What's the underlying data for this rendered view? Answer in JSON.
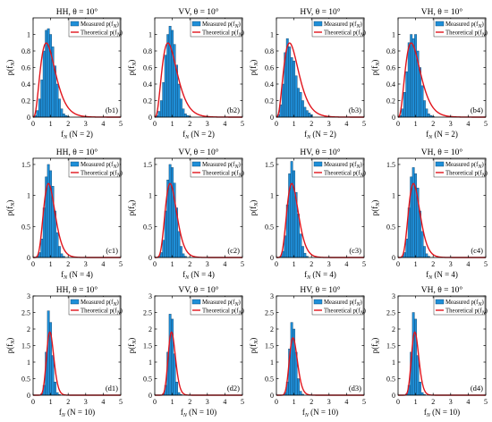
{
  "figure": {
    "colors": {
      "bar": "#1f8fd8",
      "bar_edge": "#0d3f66",
      "curve": "#e1141c",
      "axis": "#000000"
    }
  },
  "chart_data": [
    {
      "type": "bar",
      "panel": "b1",
      "title": "HH, θ = 10°",
      "xlabel": "f_N (N = 2)",
      "ylabel": "p(f_N)",
      "legend": [
        "Measured p(f_N)",
        "Theoretical p(f_N)"
      ],
      "xlim": [
        0,
        5
      ],
      "ylim": [
        0,
        1.2
      ],
      "x_ticks": [
        0,
        1,
        2,
        3,
        4,
        5
      ],
      "y_ticks": [
        0,
        0.2,
        0.4,
        0.6,
        0.8,
        1
      ],
      "bin_width": 0.125,
      "bins": [
        0.125,
        0.25,
        0.375,
        0.5,
        0.625,
        0.75,
        0.875,
        1.0,
        1.125,
        1.25,
        1.375,
        1.5,
        1.625,
        1.75,
        1.875,
        2.0
      ],
      "values": [
        0.02,
        0.08,
        0.22,
        0.45,
        0.8,
        1.05,
        1.07,
        1.0,
        0.85,
        0.62,
        0.4,
        0.22,
        0.1,
        0.04,
        0.02,
        0.01
      ],
      "curve": {
        "dist": "gamma",
        "shape": 4
      }
    },
    {
      "type": "bar",
      "panel": "b2",
      "title": "VV, θ = 10°",
      "xlabel": "f_N (N = 2)",
      "ylabel": "p(f_N)",
      "legend": [
        "Measured p(f_N)",
        "Theoretical p(f_N)"
      ],
      "xlim": [
        0,
        5
      ],
      "ylim": [
        0,
        1.2
      ],
      "x_ticks": [
        0,
        1,
        2,
        3,
        4,
        5
      ],
      "y_ticks": [
        0,
        0.2,
        0.4,
        0.6,
        0.8,
        1
      ],
      "bin_width": 0.125,
      "bins": [
        0.125,
        0.25,
        0.375,
        0.5,
        0.625,
        0.75,
        0.875,
        1.0,
        1.125,
        1.25,
        1.375,
        1.5,
        1.625,
        1.75,
        1.875,
        2.0
      ],
      "values": [
        0.02,
        0.07,
        0.2,
        0.42,
        0.75,
        1.0,
        1.1,
        1.05,
        0.88,
        0.63,
        0.4,
        0.22,
        0.1,
        0.04,
        0.02,
        0.01
      ],
      "curve": {
        "dist": "gamma",
        "shape": 4
      }
    },
    {
      "type": "bar",
      "panel": "b3",
      "title": "HV, θ = 10°",
      "xlabel": "f_N (N = 2)",
      "ylabel": "p(f_N)",
      "legend": [
        "Measured p(f_N)",
        "Theoretical p(f_N)"
      ],
      "xlim": [
        0,
        5
      ],
      "ylim": [
        0,
        1.2
      ],
      "x_ticks": [
        0,
        1,
        2,
        3,
        4,
        5
      ],
      "y_ticks": [
        0,
        0.2,
        0.4,
        0.6,
        0.8,
        1
      ],
      "bin_width": 0.125,
      "bins": [
        0.125,
        0.25,
        0.375,
        0.5,
        0.625,
        0.75,
        0.875,
        1.0,
        1.125,
        1.25,
        1.375,
        1.5,
        1.625,
        1.75,
        1.875,
        2.0
      ],
      "values": [
        0.03,
        0.15,
        0.4,
        0.78,
        0.95,
        0.85,
        0.72,
        0.68,
        0.5,
        0.35,
        0.3,
        0.2,
        0.12,
        0.08,
        0.05,
        0.03
      ],
      "curve": {
        "dist": "gamma",
        "shape": 4
      }
    },
    {
      "type": "bar",
      "panel": "b4",
      "title": "VH, θ = 10°",
      "xlabel": "f_N (N = 2)",
      "ylabel": "p(f_N)",
      "legend": [
        "Measured p(f_N)",
        "Theoretical p(f_N)"
      ],
      "xlim": [
        0,
        5
      ],
      "ylim": [
        0,
        1.2
      ],
      "x_ticks": [
        0,
        1,
        2,
        3,
        4,
        5
      ],
      "y_ticks": [
        0,
        0.2,
        0.4,
        0.6,
        0.8,
        1
      ],
      "bin_width": 0.125,
      "bins": [
        0.125,
        0.25,
        0.375,
        0.5,
        0.625,
        0.75,
        0.875,
        1.0,
        1.125,
        1.25,
        1.375,
        1.5,
        1.625,
        1.75,
        1.875,
        2.0
      ],
      "values": [
        0.02,
        0.1,
        0.3,
        0.55,
        0.9,
        1.0,
        0.95,
        1.0,
        0.8,
        0.6,
        0.38,
        0.2,
        0.1,
        0.04,
        0.02,
        0.01
      ],
      "curve": {
        "dist": "gamma",
        "shape": 4
      }
    },
    {
      "type": "bar",
      "panel": "c1",
      "title": "HH, θ = 10°",
      "xlabel": "f_N (N = 4)",
      "ylabel": "p(f_N)",
      "legend": [
        "Measured p(f_N)",
        "Theoretical p(f_N)"
      ],
      "xlim": [
        0,
        5
      ],
      "ylim": [
        0,
        1.6
      ],
      "x_ticks": [
        0,
        1,
        2,
        3,
        4,
        5
      ],
      "y_ticks": [
        0,
        0.5,
        1,
        1.5
      ],
      "bin_width": 0.125,
      "bins": [
        0.25,
        0.375,
        0.5,
        0.625,
        0.75,
        0.875,
        1.0,
        1.125,
        1.25,
        1.375,
        1.5,
        1.625,
        1.75
      ],
      "values": [
        0.02,
        0.08,
        0.3,
        0.8,
        1.3,
        1.5,
        1.4,
        1.15,
        0.75,
        0.4,
        0.18,
        0.06,
        0.02
      ],
      "curve": {
        "dist": "gamma",
        "shape": 8
      }
    },
    {
      "type": "bar",
      "panel": "c2",
      "title": "VV, θ = 10°",
      "xlabel": "f_N (N = 4)",
      "ylabel": "p(f_N)",
      "legend": [
        "Measured p(f_N)",
        "Theoretical p(f_N)"
      ],
      "xlim": [
        0,
        5
      ],
      "ylim": [
        0,
        1.6
      ],
      "x_ticks": [
        0,
        1,
        2,
        3,
        4,
        5
      ],
      "y_ticks": [
        0,
        0.5,
        1,
        1.5
      ],
      "bin_width": 0.125,
      "bins": [
        0.25,
        0.375,
        0.5,
        0.625,
        0.75,
        0.875,
        1.0,
        1.125,
        1.25,
        1.375,
        1.5,
        1.625,
        1.75
      ],
      "values": [
        0.02,
        0.08,
        0.28,
        0.75,
        1.25,
        1.5,
        1.45,
        1.2,
        0.8,
        0.42,
        0.18,
        0.06,
        0.02
      ],
      "curve": {
        "dist": "gamma",
        "shape": 8
      }
    },
    {
      "type": "bar",
      "panel": "c3",
      "title": "HV, θ = 10°",
      "xlabel": "f_N (N = 4)",
      "ylabel": "p(f_N)",
      "legend": [
        "Measured p(f_N)",
        "Theoretical p(f_N)"
      ],
      "xlim": [
        0,
        5
      ],
      "ylim": [
        0,
        1.6
      ],
      "x_ticks": [
        0,
        1,
        2,
        3,
        4,
        5
      ],
      "y_ticks": [
        0,
        0.5,
        1,
        1.5
      ],
      "bin_width": 0.125,
      "bins": [
        0.25,
        0.375,
        0.5,
        0.625,
        0.75,
        0.875,
        1.0,
        1.125,
        1.25,
        1.375,
        1.5,
        1.625,
        1.75
      ],
      "values": [
        0.02,
        0.1,
        0.35,
        0.85,
        1.35,
        1.55,
        1.4,
        1.05,
        0.7,
        0.38,
        0.18,
        0.07,
        0.02
      ],
      "curve": {
        "dist": "gamma",
        "shape": 8
      }
    },
    {
      "type": "bar",
      "panel": "c4",
      "title": "VH, θ = 10°",
      "xlabel": "f_N (N = 4)",
      "ylabel": "p(f_N)",
      "legend": [
        "Measured p(f_N)",
        "Theoretical p(f_N)"
      ],
      "xlim": [
        0,
        5
      ],
      "ylim": [
        0,
        1.6
      ],
      "x_ticks": [
        0,
        1,
        2,
        3,
        4,
        5
      ],
      "y_ticks": [
        0,
        0.5,
        1,
        1.5
      ],
      "bin_width": 0.125,
      "bins": [
        0.25,
        0.375,
        0.5,
        0.625,
        0.75,
        0.875,
        1.0,
        1.125,
        1.25,
        1.375,
        1.5,
        1.625,
        1.75
      ],
      "values": [
        0.02,
        0.08,
        0.3,
        0.8,
        1.3,
        1.45,
        1.35,
        1.12,
        0.75,
        0.42,
        0.18,
        0.06,
        0.02
      ],
      "curve": {
        "dist": "gamma",
        "shape": 8
      }
    },
    {
      "type": "bar",
      "panel": "d1",
      "title": "HH, θ = 10°",
      "xlabel": "f_N (N = 10)",
      "ylabel": "p(f_N)",
      "legend": [
        "Measured p(f_N)",
        "Theoretical p(f_N)"
      ],
      "xlim": [
        0,
        5
      ],
      "ylim": [
        0,
        3
      ],
      "x_ticks": [
        0,
        1,
        2,
        3,
        4,
        5
      ],
      "y_ticks": [
        0,
        0.5,
        1,
        1.5,
        2,
        2.5,
        3
      ],
      "bin_width": 0.125,
      "bins": [
        0.5,
        0.625,
        0.75,
        0.875,
        1.0,
        1.125,
        1.25,
        1.375,
        1.5
      ],
      "values": [
        0.05,
        0.3,
        1.3,
        2.55,
        2.2,
        1.2,
        0.4,
        0.08,
        0.02
      ],
      "curve": {
        "dist": "gamma",
        "shape": 22
      }
    },
    {
      "type": "bar",
      "panel": "d2",
      "title": "VV, θ = 10°",
      "xlabel": "f_N (N = 10)",
      "ylabel": "p(f_N)",
      "legend": [
        "Measured p(f_N)",
        "Theoretical p(f_N)"
      ],
      "xlim": [
        0,
        5
      ],
      "ylim": [
        0,
        3
      ],
      "x_ticks": [
        0,
        1,
        2,
        3,
        4,
        5
      ],
      "y_ticks": [
        0,
        0.5,
        1,
        1.5,
        2,
        2.5,
        3
      ],
      "bin_width": 0.125,
      "bins": [
        0.5,
        0.625,
        0.75,
        0.875,
        1.0,
        1.125,
        1.25,
        1.375,
        1.5
      ],
      "values": [
        0.05,
        0.3,
        1.3,
        2.45,
        2.3,
        1.25,
        0.4,
        0.08,
        0.02
      ],
      "curve": {
        "dist": "gamma",
        "shape": 22
      }
    },
    {
      "type": "bar",
      "panel": "d3",
      "title": "HV, θ = 10°",
      "xlabel": "f_N (N = 10)",
      "ylabel": "p(f_N)",
      "legend": [
        "Measured p(f_N)",
        "Theoretical p(f_N)"
      ],
      "xlim": [
        0,
        5
      ],
      "ylim": [
        0,
        3
      ],
      "x_ticks": [
        0,
        1,
        2,
        3,
        4,
        5
      ],
      "y_ticks": [
        0,
        0.5,
        1,
        1.5,
        2,
        2.5,
        3
      ],
      "bin_width": 0.125,
      "bins": [
        0.5,
        0.625,
        0.75,
        0.875,
        1.0,
        1.125,
        1.25,
        1.375,
        1.5
      ],
      "values": [
        0.08,
        0.4,
        1.4,
        2.2,
        2.0,
        1.3,
        0.5,
        0.12,
        0.03
      ],
      "curve": {
        "dist": "gamma",
        "shape": 18
      }
    },
    {
      "type": "bar",
      "panel": "d4",
      "title": "VH, θ = 10°",
      "xlabel": "f_N (N = 10)",
      "ylabel": "p(f_N)",
      "legend": [
        "Measured p(f_N)",
        "Theoretical p(f_N)"
      ],
      "xlim": [
        0,
        5
      ],
      "ylim": [
        0,
        3
      ],
      "x_ticks": [
        0,
        1,
        2,
        3,
        4,
        5
      ],
      "y_ticks": [
        0,
        0.5,
        1,
        1.5,
        2,
        2.5,
        3
      ],
      "bin_width": 0.125,
      "bins": [
        0.5,
        0.625,
        0.75,
        0.875,
        1.0,
        1.125,
        1.25,
        1.375,
        1.5
      ],
      "values": [
        0.05,
        0.3,
        1.3,
        2.5,
        2.3,
        1.2,
        0.4,
        0.08,
        0.02
      ],
      "curve": {
        "dist": "gamma",
        "shape": 22
      }
    }
  ]
}
